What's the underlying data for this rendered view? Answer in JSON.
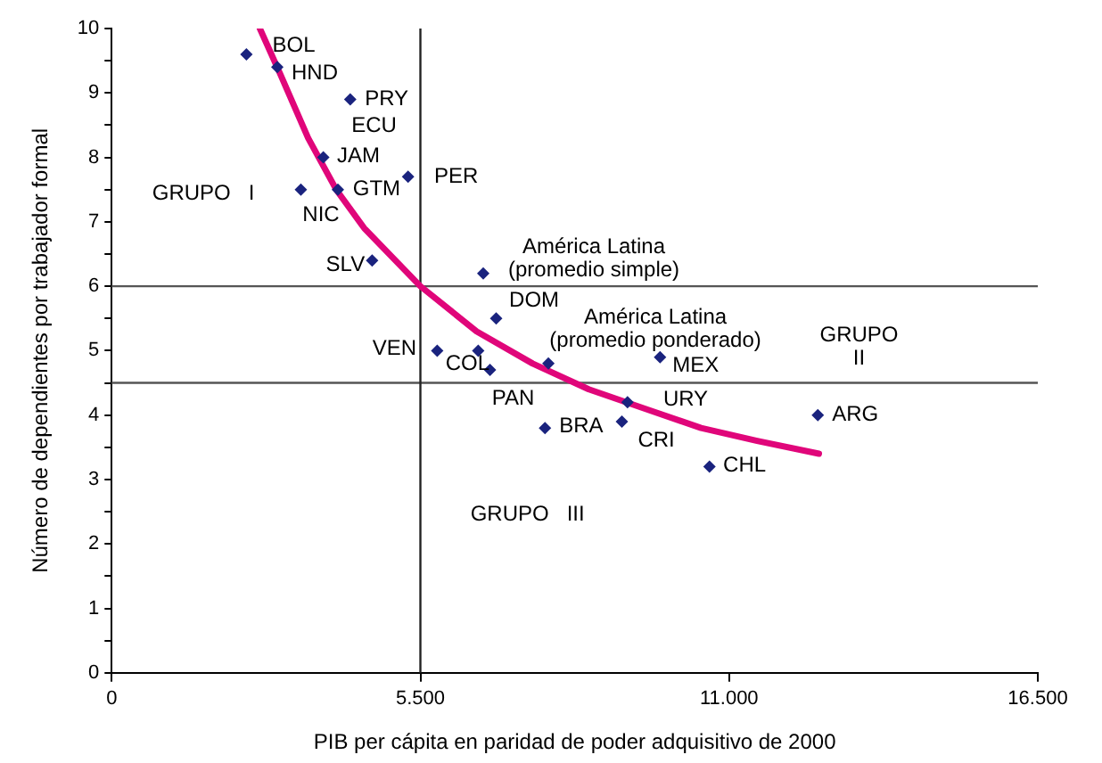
{
  "chart_data": {
    "type": "scatter",
    "xlabel": "PIB per cápita en paridad de poder adquisitivo de 2000",
    "ylabel": "Número de dependientes por trabajador formal",
    "xlim": [
      0,
      16500
    ],
    "ylim": [
      0,
      10
    ],
    "xticks": [
      0,
      {
        "value": 5500,
        "label": "5.500"
      },
      {
        "value": 11000,
        "label": "11.000"
      },
      {
        "value": 16500,
        "label": "16.500"
      }
    ],
    "yticks": [
      0,
      {
        "value": 0.5,
        "label": null
      },
      1,
      {
        "value": 1.5,
        "label": null
      },
      2,
      {
        "value": 2.5,
        "label": null
      },
      3,
      {
        "value": 3.5,
        "label": null
      },
      4,
      {
        "value": 4.5,
        "label": null
      },
      5,
      {
        "value": 5.5,
        "label": null
      },
      6,
      {
        "value": 6.5,
        "label": null
      },
      7,
      {
        "value": 7.5,
        "label": null
      },
      8,
      {
        "value": 8.5,
        "label": null
      },
      9,
      {
        "value": 9.5,
        "label": null
      },
      10
    ],
    "grid": false,
    "legend": false,
    "marker": "diamond",
    "series": [
      {
        "type": "scatter",
        "color": "#1a237e",
        "x": [
          2400,
          2950,
          4250,
          3770,
          3370,
          4030,
          5280,
          4640,
          6620,
          6850,
          5800,
          6530,
          6740,
          7780,
          9770,
          9190,
          7720,
          9090,
          10650,
          12580
        ],
        "values": [
          9.6,
          9.4,
          8.9,
          8.0,
          7.5,
          7.5,
          7.7,
          6.4,
          6.2,
          5.5,
          5.0,
          5.0,
          4.7,
          4.8,
          4.9,
          4.2,
          3.8,
          3.9,
          3.2,
          4.0
        ]
      },
      {
        "type": "line",
        "color": "#e0067a",
        "marker": "none",
        "line_style": "solid",
        "x": [
          2640,
          3000,
          3500,
          4000,
          4500,
          5500,
          6500,
          7500,
          8500,
          9500,
          10500,
          11500,
          12600
        ],
        "values": [
          10,
          9.3,
          8.3,
          7.5,
          6.9,
          6.0,
          5.3,
          4.8,
          4.4,
          4.1,
          3.8,
          3.6,
          3.4
        ]
      }
    ],
    "ref_lines": [
      {
        "axis": "y",
        "value": 6,
        "color": "#555555"
      },
      {
        "axis": "y",
        "value": 4.5,
        "color": "#555555"
      },
      {
        "axis": "x",
        "value": 5500,
        "color": "#222222"
      }
    ],
    "annotations": [
      {
        "text": "BOL",
        "x": 2400,
        "y": 9.6
      },
      {
        "text": "HND",
        "x": 2950,
        "y": 9.4
      },
      {
        "text": "PRY",
        "x": 4250,
        "y": 8.9
      },
      {
        "text": "ECU",
        "x": 4250,
        "y": 8.9
      },
      {
        "text": "JAM",
        "x": 3770,
        "y": 8.0
      },
      {
        "text": "GTM",
        "x": 4030,
        "y": 7.5
      },
      {
        "text": "NIC",
        "x": 3370,
        "y": 7.5
      },
      {
        "text": "PER",
        "x": 5280,
        "y": 7.7
      },
      {
        "text": "SLV",
        "x": 4640,
        "y": 6.4
      },
      {
        "text": "América Latina\n(promedio simple)",
        "x": 6620,
        "y": 6.2
      },
      {
        "text": "DOM",
        "x": 6850,
        "y": 5.5
      },
      {
        "text": "América Latina\n(promedio ponderado)",
        "x": 7780,
        "y": 4.8
      },
      {
        "text": "MEX",
        "x": 9770,
        "y": 4.9
      },
      {
        "text": "VEN",
        "x": 5800,
        "y": 5.0
      },
      {
        "text": "COL",
        "x": 6530,
        "y": 5.0
      },
      {
        "text": "PAN",
        "x": 6740,
        "y": 4.7
      },
      {
        "text": "URY",
        "x": 9190,
        "y": 4.2
      },
      {
        "text": "BRA",
        "x": 7720,
        "y": 3.8
      },
      {
        "text": "CRI",
        "x": 9090,
        "y": 3.9
      },
      {
        "text": "CHL",
        "x": 10650,
        "y": 3.2
      },
      {
        "text": "ARG",
        "x": 12580,
        "y": 4.0
      },
      "GRUPO   I",
      "GRUPO\nII",
      "GRUPO   III"
    ]
  }
}
